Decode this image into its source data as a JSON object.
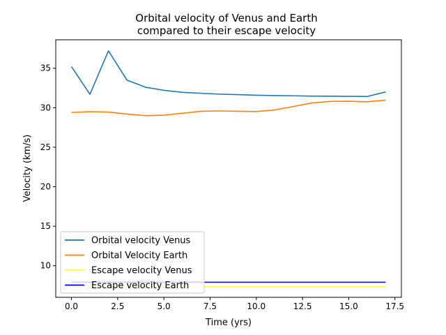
{
  "chart_data": {
    "type": "line",
    "title": [
      "Orbital velocity of Venus and Earth",
      "compared to their escape velocity"
    ],
    "xlabel": "Time (yrs)",
    "ylabel": "Velocity (km/s)",
    "xlim": [
      -0.85,
      17.85
    ],
    "ylim": [
      6.0,
      38.6
    ],
    "xticks": [
      0.0,
      2.5,
      5.0,
      7.5,
      10.0,
      12.5,
      15.0,
      17.5
    ],
    "xtick_labels": [
      "0.0",
      "2.5",
      "5.0",
      "7.5",
      "10.0",
      "12.5",
      "15.0",
      "17.5"
    ],
    "yticks": [
      10,
      15,
      20,
      25,
      30,
      35
    ],
    "ytick_labels": [
      "10",
      "15",
      "20",
      "25",
      "30",
      "35"
    ],
    "grid": false,
    "legend_position": "lower-left",
    "series": [
      {
        "name": "Orbital velocity Venus",
        "color": "#1f77b4",
        "x": [
          0,
          1,
          2,
          3,
          4,
          5,
          6,
          7,
          8,
          9,
          10,
          11,
          12,
          13,
          14,
          15,
          16,
          17
        ],
        "values": [
          35.2,
          31.7,
          37.2,
          33.5,
          32.6,
          32.2,
          31.95,
          31.83,
          31.72,
          31.66,
          31.58,
          31.54,
          31.51,
          31.47,
          31.46,
          31.44,
          31.42,
          32.0
        ]
      },
      {
        "name": "Orbital Velocity Earth",
        "color": "#ff7f0e",
        "x": [
          0,
          1,
          2,
          3,
          4,
          5,
          6,
          7,
          8,
          9,
          10,
          11,
          12,
          13,
          14,
          15,
          16,
          17
        ],
        "values": [
          29.4,
          29.5,
          29.45,
          29.2,
          29.0,
          29.05,
          29.3,
          29.55,
          29.6,
          29.55,
          29.52,
          29.72,
          30.15,
          30.6,
          30.8,
          30.82,
          30.75,
          30.95
        ]
      },
      {
        "name": "Escape velocity Venus",
        "color": "#ffff33",
        "x": [
          0,
          17
        ],
        "values": [
          7.33,
          7.33
        ]
      },
      {
        "name": "Escape velocity Earth",
        "color": "#0000ee",
        "x": [
          0,
          17
        ],
        "values": [
          7.91,
          7.91
        ]
      }
    ]
  }
}
